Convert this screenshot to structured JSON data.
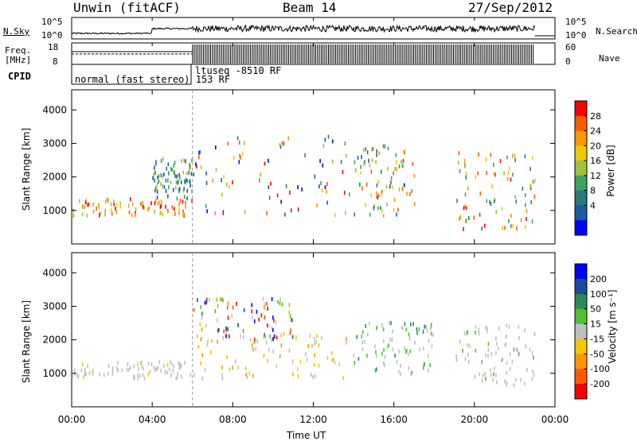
{
  "header": {
    "station": "Unwin (fitACF)",
    "beam": "Beam 14",
    "date": "27/Sep/2012"
  },
  "noise_panel": {
    "left_label": "N.Sky",
    "right_label": "N.Search",
    "left_top_tick": "10^5",
    "left_bottom_tick": "10^0",
    "right_top_tick": "10^5",
    "right_bottom_tick": "10^0"
  },
  "freq_panel": {
    "left_label_line1": "Freq.",
    "left_label_line2": "[MHz]",
    "left_top_tick": "18",
    "left_bottom_tick": "8",
    "right_label": "Nave",
    "right_top_tick": "60",
    "right_bottom_tick": "0"
  },
  "cpid_panel": {
    "label": "CPID",
    "mode1": "normal (fast stereo) 153 RF",
    "mode2": "ltuseq -8510 RF"
  },
  "power_colorbar": {
    "title": "Power [dB]",
    "ticks": [
      "28",
      "24",
      "20",
      "16",
      "12",
      "8",
      "4"
    ],
    "colors": [
      "#ff0000",
      "#ff5a00",
      "#ff9600",
      "#f0c800",
      "#a0c040",
      "#40a060",
      "#2a7a7a",
      "#1a5aa0",
      "#0000ff"
    ]
  },
  "velocity_colorbar": {
    "title": "Velocity [m s⁻¹]",
    "ticks": [
      "200",
      "100",
      "50",
      "15",
      "-15",
      "-50",
      "-100",
      "-200"
    ],
    "colors": [
      "#0000ff",
      "#1a4aa0",
      "#2a8a5a",
      "#50c030",
      "#c0c0c0",
      "#f0c800",
      "#ff9600",
      "#ff5a00",
      "#ff0000"
    ]
  },
  "chart_data": {
    "type": "heatmap",
    "xlabel": "Time UT",
    "ylabel": "Slant Range [km]",
    "xlim_hours": [
      0,
      24
    ],
    "x_ticks": [
      "00:00",
      "04:00",
      "08:00",
      "12:00",
      "16:00",
      "20:00",
      "00:00"
    ],
    "ylim_km": [
      0,
      4600
    ],
    "y_ticks": [
      "1000",
      "2000",
      "3000",
      "4000"
    ],
    "panels": [
      {
        "name": "power",
        "regions": [
          {
            "t": [
              0.0,
              6.0
            ],
            "r": [
              900,
              1400
            ],
            "value": "20-28 dB"
          },
          {
            "t": [
              4.0,
              6.0
            ],
            "r": [
              1400,
              2600
            ],
            "value": "4-12 dB"
          },
          {
            "t": [
              6.0,
              14.0
            ],
            "r": [
              900,
              3300
            ],
            "value": "4-28 dB"
          },
          {
            "t": [
              14.0,
              17.0
            ],
            "r": [
              900,
              3000
            ],
            "value": "4-24 dB"
          },
          {
            "t": [
              19.0,
              23.0
            ],
            "r": [
              500,
              2800
            ],
            "value": "8-24 dB"
          }
        ]
      },
      {
        "name": "velocity",
        "regions": [
          {
            "t": [
              0.0,
              6.0
            ],
            "r": [
              900,
              1400
            ],
            "value": "-15 to 15 m/s"
          },
          {
            "t": [
              6.0,
              11.0
            ],
            "r": [
              2000,
              3300
            ],
            "value": "-200 to 200 m/s"
          },
          {
            "t": [
              6.0,
              14.0
            ],
            "r": [
              900,
              2200
            ],
            "value": "-50 to 15 m/s"
          },
          {
            "t": [
              14.0,
              18.0
            ],
            "r": [
              1000,
              2600
            ],
            "value": "15 to 100 m/s"
          },
          {
            "t": [
              19.0,
              23.0
            ],
            "r": [
              700,
              2500
            ],
            "value": "-15 to 15 m/s"
          }
        ]
      }
    ]
  }
}
